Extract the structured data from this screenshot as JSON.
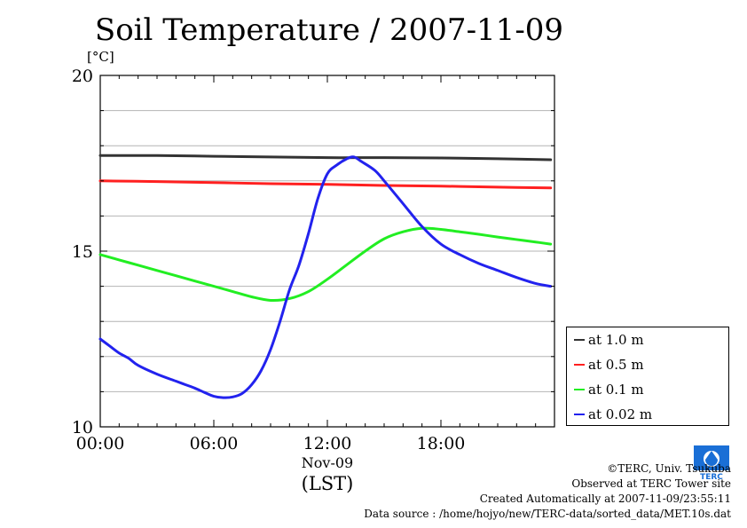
{
  "chart_data": {
    "type": "line",
    "title": "Soil Temperature / 2007-11-09",
    "yunit": "[°C]",
    "ylim": [
      10,
      20
    ],
    "yticks": [
      "10",
      "15",
      "20"
    ],
    "xlim": [
      0,
      24
    ],
    "xticks": [
      {
        "v": 0,
        "label": "00:00"
      },
      {
        "v": 6,
        "label": "06:00"
      },
      {
        "v": 12,
        "label": "12:00"
      },
      {
        "v": 18,
        "label": "18:00"
      }
    ],
    "xdate": "Nov-09",
    "xlabel": "(LST)",
    "grid": true,
    "legend": "right",
    "series": [
      {
        "name": "at 1.0 m",
        "color": "#333333",
        "x": [
          0,
          3,
          6,
          9,
          12,
          15,
          18,
          21,
          23.8
        ],
        "values": [
          17.72,
          17.72,
          17.7,
          17.68,
          17.66,
          17.66,
          17.65,
          17.63,
          17.6
        ]
      },
      {
        "name": "at 0.5 m",
        "color": "#ff2020",
        "x": [
          0,
          3,
          6,
          9,
          12,
          15,
          18,
          21,
          23.8
        ],
        "values": [
          17.0,
          16.98,
          16.95,
          16.92,
          16.9,
          16.87,
          16.85,
          16.82,
          16.8
        ]
      },
      {
        "name": "at 0.1 m",
        "color": "#22ee22",
        "x": [
          0,
          1,
          2,
          3,
          4,
          5,
          6,
          7,
          8,
          9,
          10,
          11,
          12,
          13,
          14,
          15,
          16,
          17,
          18,
          19,
          20,
          21,
          22,
          23,
          23.8
        ],
        "values": [
          14.9,
          14.75,
          14.6,
          14.45,
          14.3,
          14.15,
          14.0,
          13.85,
          13.7,
          13.6,
          13.65,
          13.85,
          14.2,
          14.6,
          15.0,
          15.35,
          15.55,
          15.65,
          15.62,
          15.55,
          15.48,
          15.4,
          15.33,
          15.26,
          15.2
        ]
      },
      {
        "name": "at 0.02 m",
        "color": "#2222ee",
        "x": [
          0,
          0.5,
          1,
          1.5,
          2,
          3,
          4,
          4.5,
          5,
          5.5,
          6,
          6.5,
          7,
          7.5,
          8,
          8.5,
          9,
          9.5,
          10,
          10.5,
          11,
          11.5,
          12,
          12.5,
          13,
          13.4,
          13.8,
          14.5,
          15,
          16,
          17,
          18,
          19,
          20,
          21,
          22,
          23,
          23.8
        ],
        "values": [
          12.5,
          12.3,
          12.1,
          11.95,
          11.75,
          11.5,
          11.3,
          11.2,
          11.1,
          10.98,
          10.87,
          10.83,
          10.85,
          10.95,
          11.2,
          11.6,
          12.2,
          13.0,
          13.9,
          14.6,
          15.5,
          16.5,
          17.2,
          17.45,
          17.62,
          17.68,
          17.55,
          17.3,
          17.0,
          16.35,
          15.7,
          15.2,
          14.9,
          14.65,
          14.45,
          14.25,
          14.08,
          14.0
        ]
      }
    ]
  },
  "credits": {
    "line1": "©TERC, Univ. Tsukuba",
    "line2": "Observed at TERC Tower site",
    "line3": "Created Automatically at 2007-11-09/23:55:11",
    "line4": "Data source : /home/hojyo/new/TERC-data/sorted_data/MET.10s.dat"
  },
  "logo": {
    "text": "TERC",
    "color": "#1a6fd6"
  }
}
